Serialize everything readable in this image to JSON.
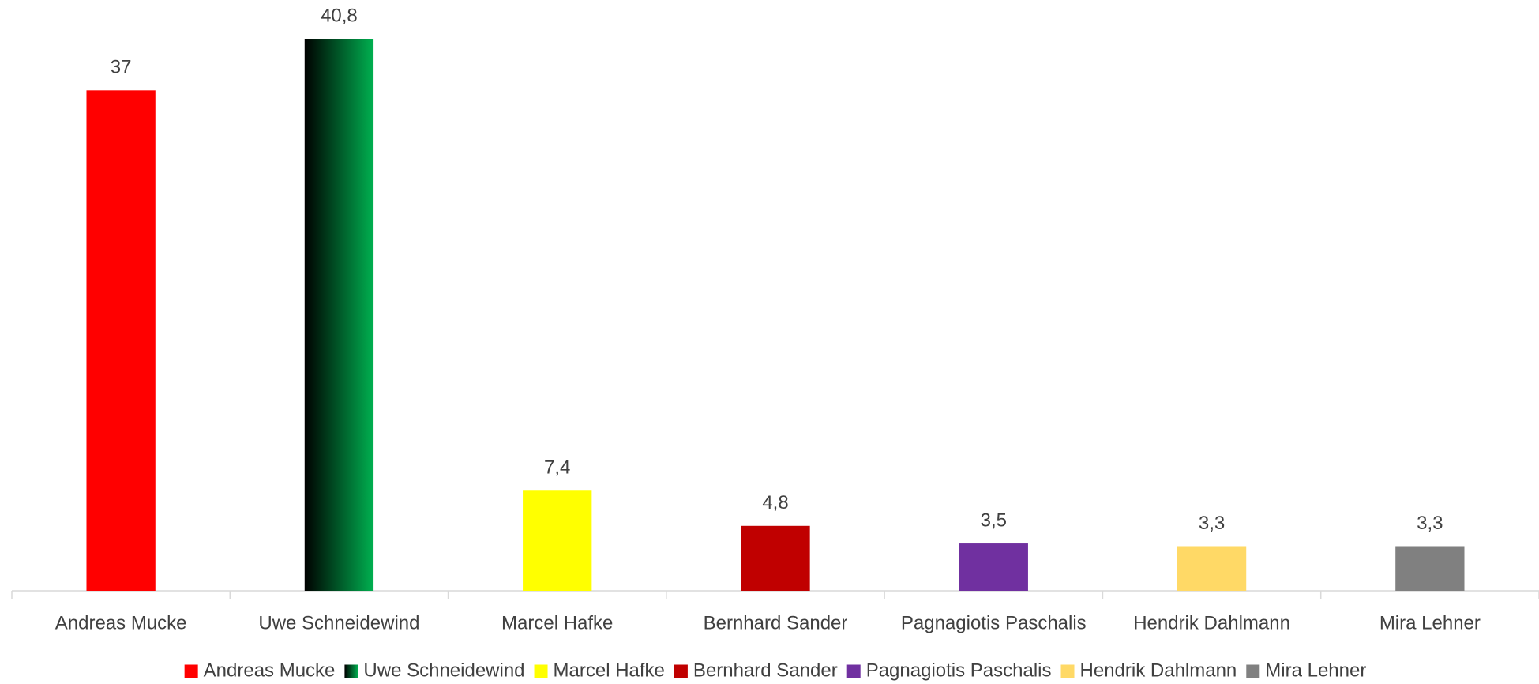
{
  "chart_data": {
    "type": "bar",
    "categories": [
      "Andreas Mucke",
      "Uwe Schneidewind",
      "Marcel Hafke",
      "Bernhard Sander",
      "Pagnagiotis Paschalis",
      "Hendrik Dahlmann",
      "Mira Lehner"
    ],
    "values": [
      37,
      40.8,
      7.4,
      4.8,
      3.5,
      3.3,
      3.3
    ],
    "value_labels": [
      "37",
      "40,8",
      "7,4",
      "4,8",
      "3,5",
      "3,3",
      "3,3"
    ],
    "colors": [
      "#ff0000",
      {
        "gradient": [
          "#000000",
          "#00b050"
        ]
      },
      "#ffff00",
      "#c00000",
      "#7030a0",
      "#ffd966",
      "#808080"
    ],
    "ylim": [
      0,
      43.5
    ],
    "legend": "bottom"
  }
}
